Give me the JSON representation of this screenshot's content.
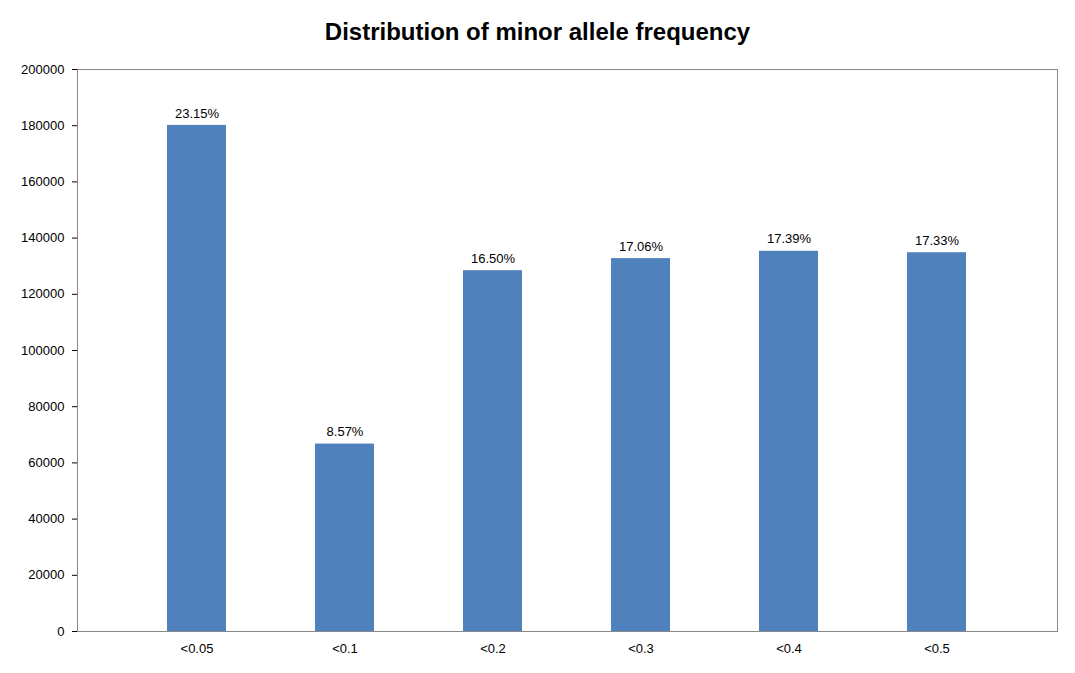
{
  "chart_data": {
    "type": "bar",
    "title": "Distribution of minor allele frequency",
    "categories": [
      "<0.05",
      "<0.1",
      "<0.2",
      "<0.3",
      "<0.4",
      "<0.5"
    ],
    "values": [
      180100,
      66700,
      128400,
      132700,
      135300,
      134800
    ],
    "annotations": [
      "23.15%",
      "8.57%",
      "16.50%",
      "17.06%",
      "17.39%",
      "17.33%"
    ],
    "color": "#4f81bd",
    "ylim": [
      0,
      200000
    ],
    "yticks": [
      0,
      20000,
      40000,
      60000,
      80000,
      100000,
      120000,
      140000,
      160000,
      180000,
      200000
    ],
    "grid": false
  }
}
